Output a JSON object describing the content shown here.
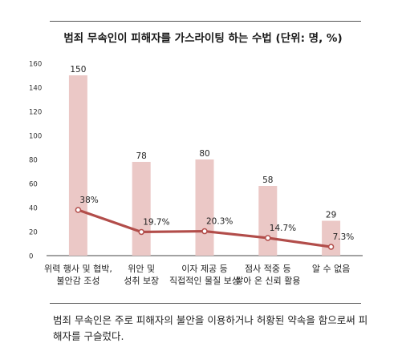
{
  "title": "범죄 무속인이 피해자를 가스라이팅 하는 수법 (단위: 명, %)",
  "caption": "범죄 무속인은 주로 피해자의 불안을 이용하거나 허황된 약속을 함으로써 피해자를 구슬렀다.",
  "colors": {
    "bar": "#ebc8c6",
    "line": "#b24d4a",
    "axis": "#444444"
  },
  "chart_data": {
    "type": "bar",
    "categories": [
      [
        "위력 행사 및 협박,",
        "불안감 조성"
      ],
      [
        "위안 및",
        "성취 보장"
      ],
      [
        "이자 제공 등",
        "직접적인 물질 보상"
      ],
      [
        "점사 적중 등",
        "쌓아 온 신뢰 활용"
      ],
      [
        "알 수 없음"
      ]
    ],
    "series": [
      {
        "type": "bar",
        "values": [
          150,
          78,
          80,
          58,
          29
        ],
        "labels": [
          "150",
          "78",
          "80",
          "58",
          "29"
        ]
      },
      {
        "type": "line",
        "values": [
          38,
          19.7,
          20.3,
          14.7,
          7.3
        ],
        "labels": [
          "38%",
          "19.7%",
          "20.3%",
          "14.7%",
          "7.3%"
        ]
      }
    ],
    "ylim": [
      0,
      160
    ],
    "yticks": [
      0,
      20,
      40,
      60,
      80,
      100,
      120,
      140,
      160
    ]
  }
}
